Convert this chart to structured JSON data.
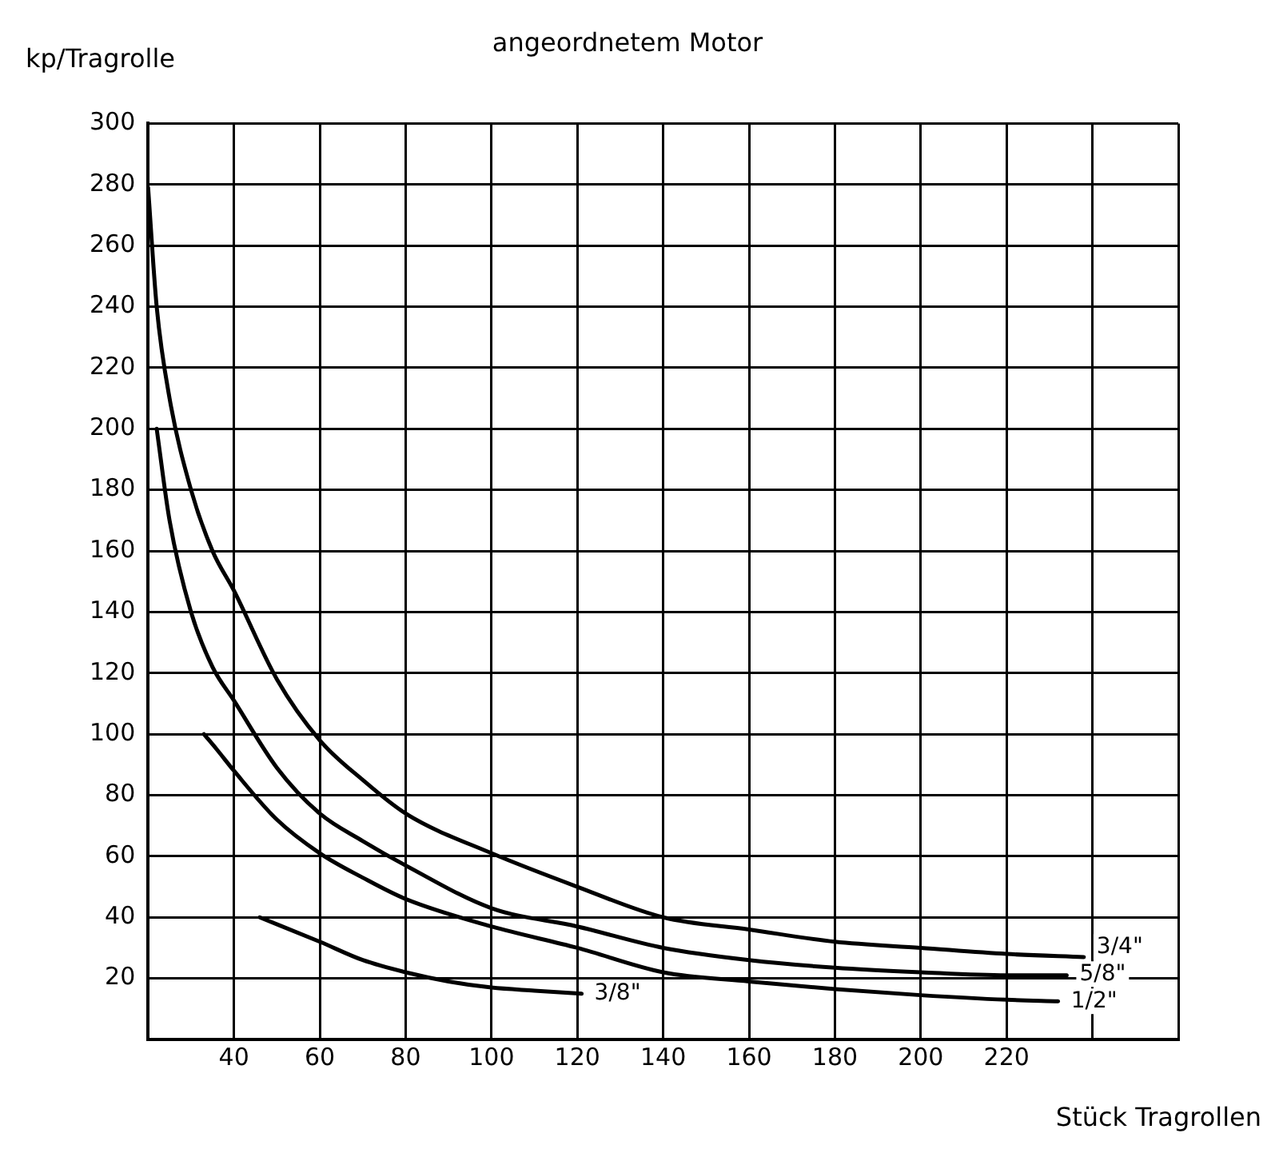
{
  "chart_data": {
    "type": "line",
    "title": "angeordnetem Motor",
    "xlabel": "Stück Tragrollen",
    "ylabel": "kp/Tragrolle",
    "xlim": [
      20,
      260
    ],
    "xticks": [
      {
        "value": 20,
        "label": null
      },
      40,
      60,
      80,
      100,
      120,
      140,
      160,
      180,
      200,
      220,
      {
        "value": 240,
        "label": null
      },
      {
        "value": 260,
        "label": null
      }
    ],
    "ylim": [
      0,
      300
    ],
    "yticks": [
      {
        "value": 0,
        "label": null
      },
      20,
      40,
      60,
      80,
      100,
      120,
      140,
      160,
      180,
      200,
      220,
      240,
      260,
      280,
      300
    ],
    "grid": true,
    "legend": false,
    "marker": "none",
    "line_style": "solid",
    "series": [
      {
        "name": "3/4\"",
        "color": "#000000",
        "x": [
          20,
          22,
          25,
          30,
          35,
          40,
          50,
          60,
          70,
          80,
          100,
          120,
          140,
          160,
          180,
          200,
          220,
          238
        ],
        "values": [
          279,
          240,
          210,
          180,
          160,
          147,
          118,
          98,
          85,
          74,
          61,
          50,
          40,
          36,
          32,
          30,
          28,
          27
        ]
      },
      {
        "name": "5/8\"",
        "color": "#000000",
        "x": [
          22,
          25,
          30,
          35,
          40,
          50,
          60,
          70,
          80,
          100,
          120,
          140,
          160,
          180,
          200,
          220,
          234
        ],
        "values": [
          200,
          170,
          140,
          122,
          111,
          89,
          74,
          65,
          57,
          43,
          37,
          30,
          26,
          23.5,
          22,
          21,
          21
        ]
      },
      {
        "name": "1/2\"",
        "color": "#000000",
        "x": [
          33,
          36,
          40,
          50,
          60,
          70,
          80,
          100,
          120,
          140,
          160,
          180,
          200,
          220,
          232
        ],
        "values": [
          100,
          95,
          88,
          72,
          61,
          53,
          46,
          37,
          30,
          22,
          19,
          16.5,
          14.5,
          13,
          12.5
        ]
      },
      {
        "name": "3/8\"",
        "color": "#000000",
        "x": [
          46,
          60,
          70,
          80,
          90,
          100,
          110,
          121
        ],
        "values": [
          40,
          32,
          26,
          22,
          19,
          17,
          16,
          15
        ]
      }
    ]
  }
}
